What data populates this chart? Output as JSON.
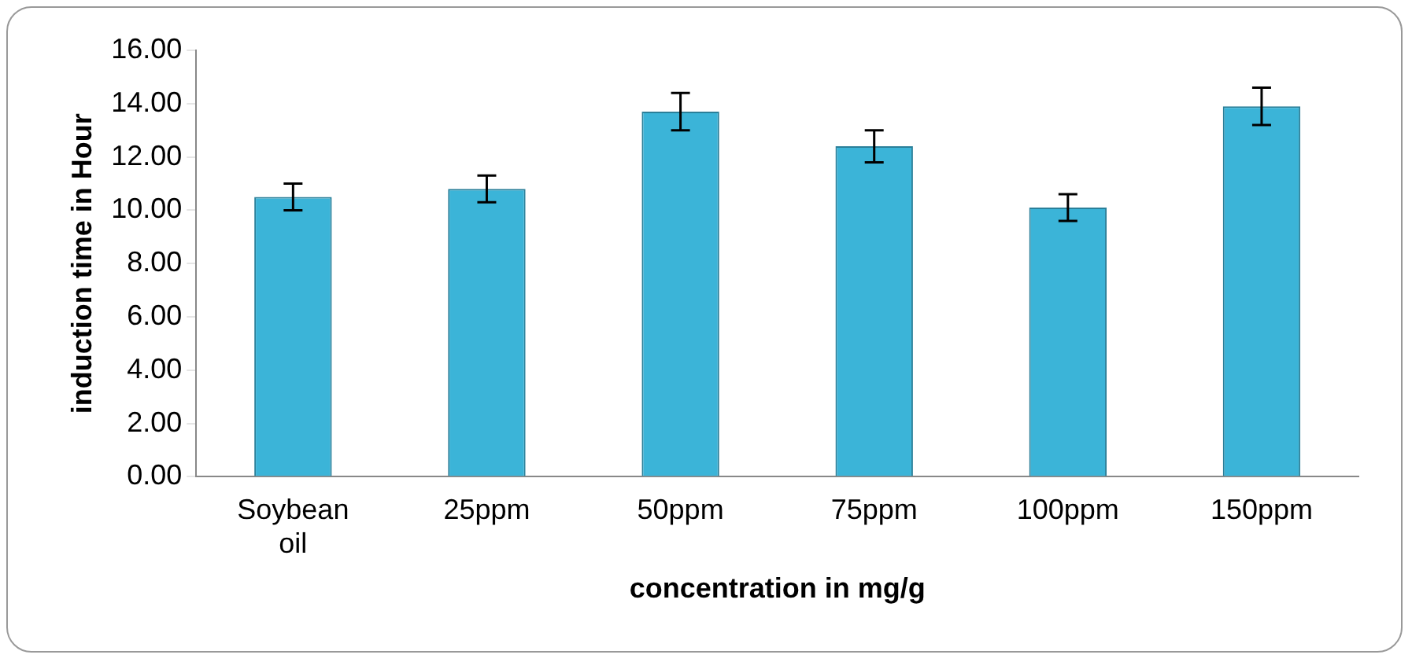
{
  "chart_data": {
    "type": "bar",
    "xlabel": "concentration in mg/g",
    "ylabel": "induction time in Hour",
    "categories": [
      "Soybean oil",
      "25ppm",
      "50ppm",
      "75ppm",
      "100ppm",
      "150ppm"
    ],
    "values": [
      10.5,
      10.8,
      13.7,
      12.4,
      10.1,
      13.9
    ],
    "errors": [
      0.5,
      0.5,
      0.7,
      0.6,
      0.5,
      0.7
    ],
    "color": "#3bb4d8",
    "ylim": [
      0,
      16
    ],
    "yticks": [
      {
        "value": 0,
        "label": "0.00"
      },
      {
        "value": 2,
        "label": "2.00"
      },
      {
        "value": 4,
        "label": "4.00"
      },
      {
        "value": 6,
        "label": "6.00"
      },
      {
        "value": 8,
        "label": "8.00"
      },
      {
        "value": 10,
        "label": "10.00"
      },
      {
        "value": 12,
        "label": "12.00"
      },
      {
        "value": 14,
        "label": "14.00"
      },
      {
        "value": 16,
        "label": "16.00"
      }
    ],
    "grid": false,
    "legend": false
  }
}
